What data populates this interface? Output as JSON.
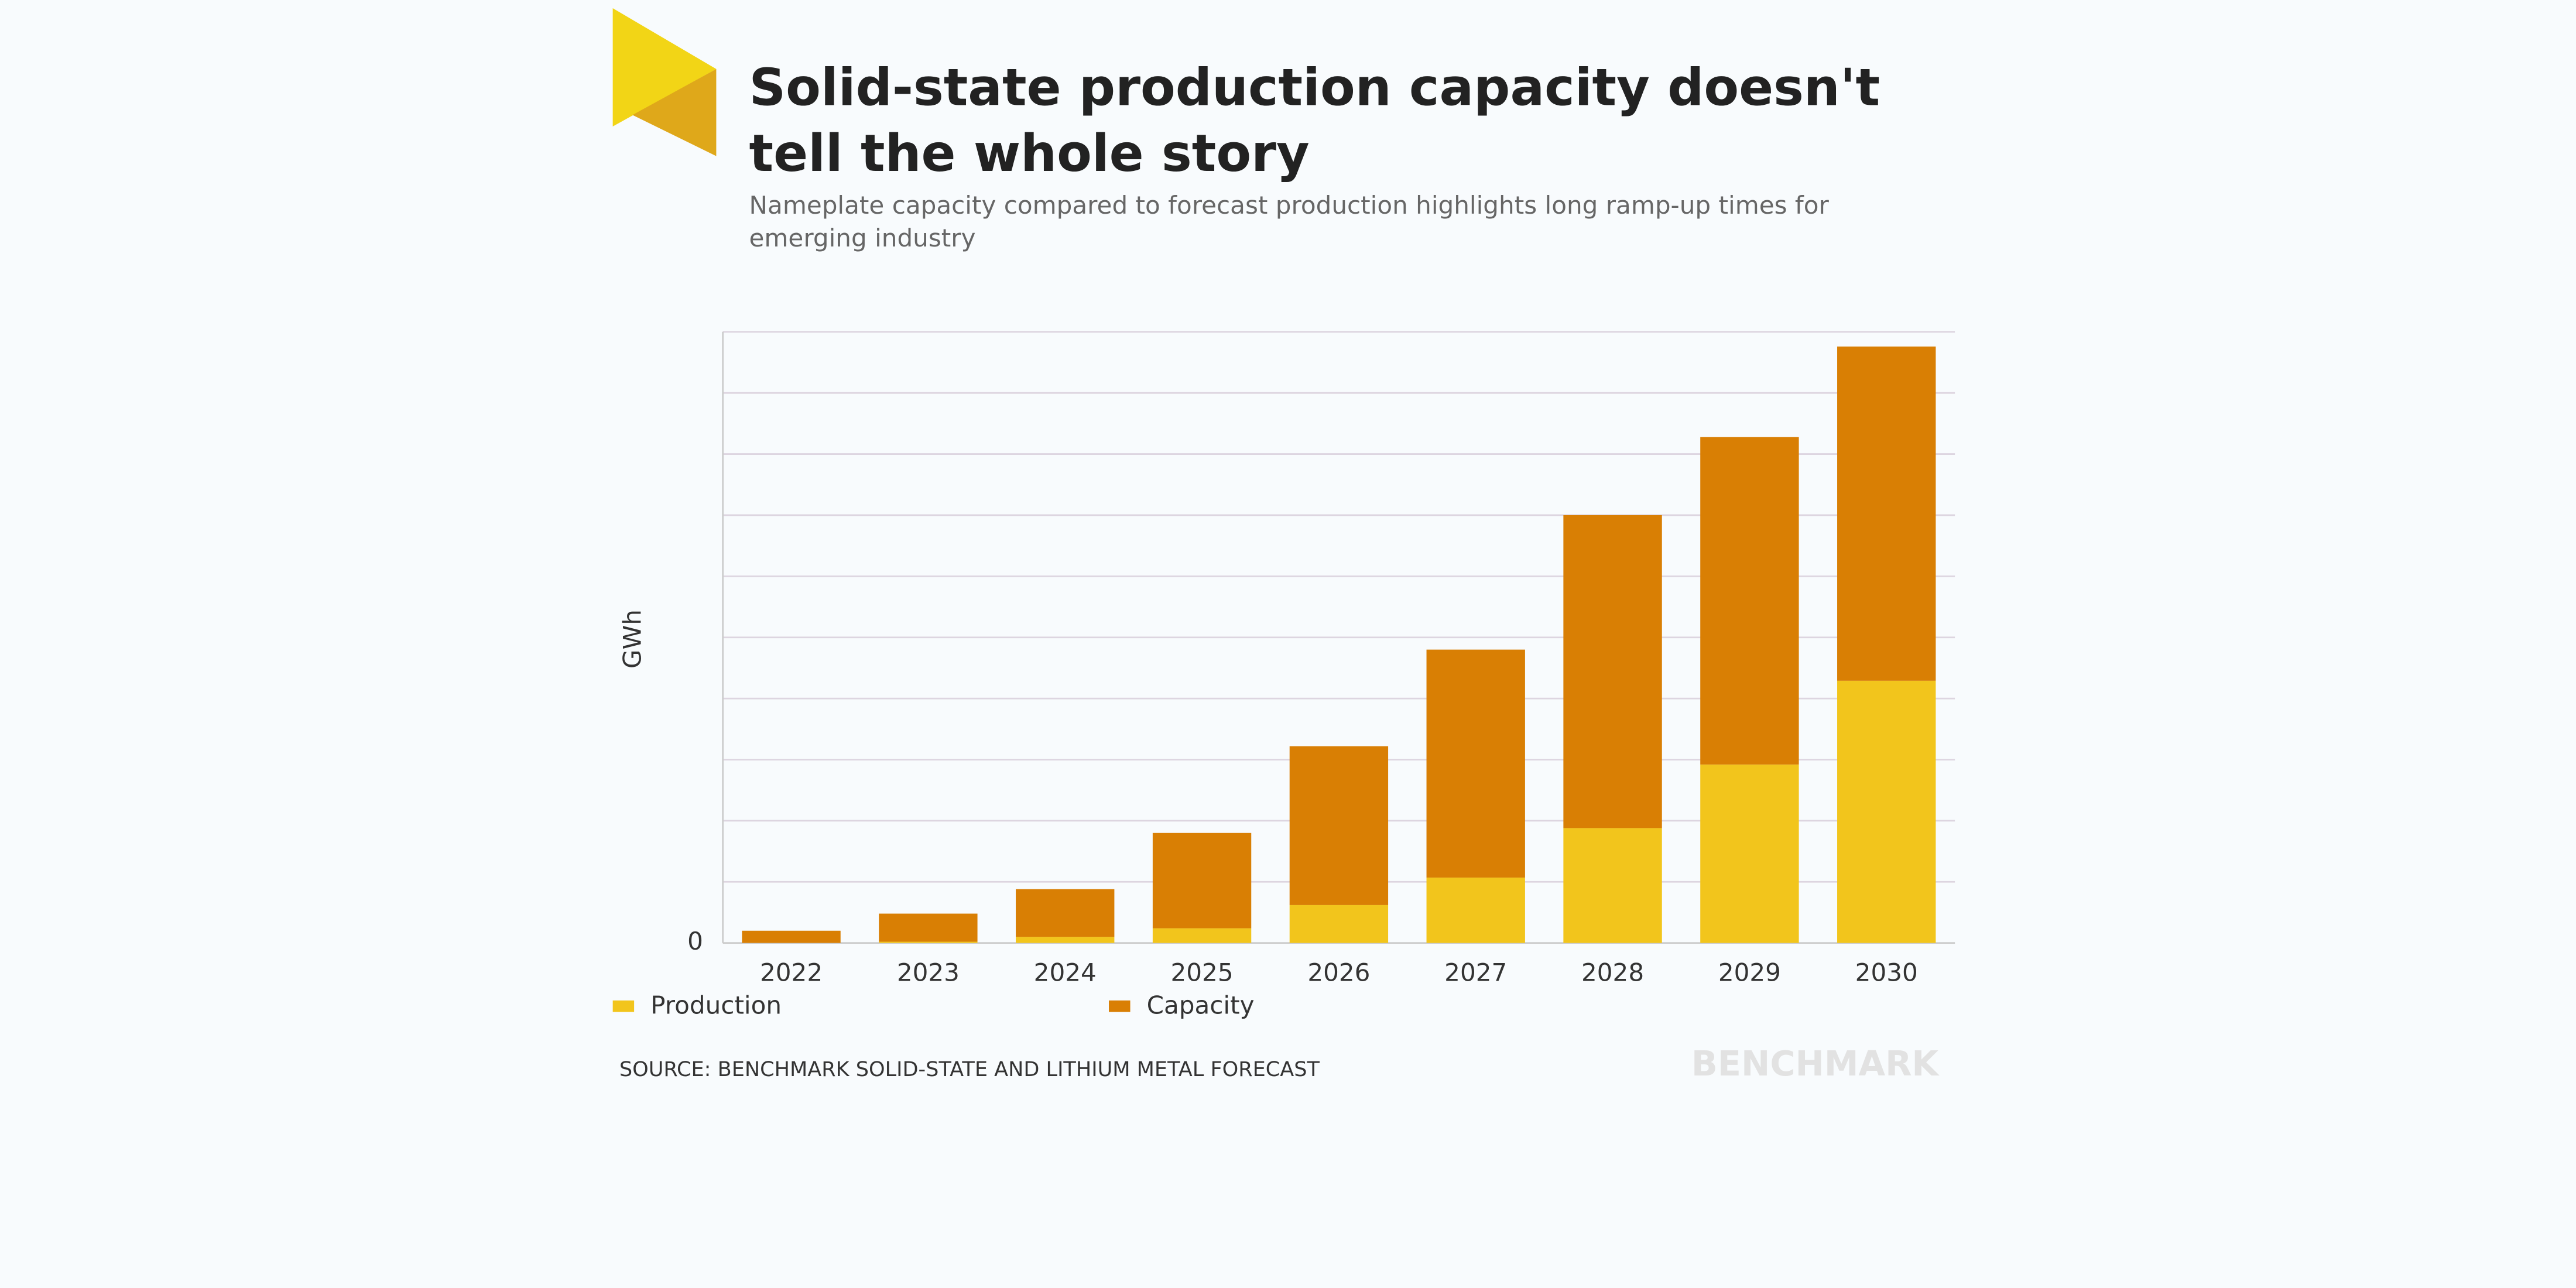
{
  "chart_data": {
    "type": "stacked_bar",
    "title": "Solid-state production capacity doesn't tell the whole story",
    "subtitle": "Nameplate capacity compared to forecast production highlights long ramp-up times for emerging industry",
    "y_label": "GWh",
    "categories": [
      "2022",
      "2023",
      "2024",
      "2025",
      "2026",
      "2027",
      "2028",
      "2029",
      "2030"
    ],
    "series": [
      {
        "name": "Production",
        "color": "#f2c51c",
        "values": [
          0,
          0.02,
          0.1,
          0.24,
          0.62,
          1.07,
          1.88,
          2.92,
          4.29
        ]
      },
      {
        "name": "Capacity",
        "color": "#d97f04",
        "values": [
          0.2,
          0.46,
          0.78,
          1.56,
          2.6,
          3.73,
          5.12,
          5.36,
          5.47
        ]
      }
    ],
    "ylim": [
      0,
      10
    ],
    "yticks": [
      0
    ],
    "gridlines": [
      1,
      2,
      3,
      4,
      5,
      6,
      7,
      8,
      9,
      10
    ],
    "grid": true,
    "source": "SOURCE: BENCHMARK SOLID-STATE AND LITHIUM METAL FORECAST",
    "brand": "BENCHMARK"
  }
}
